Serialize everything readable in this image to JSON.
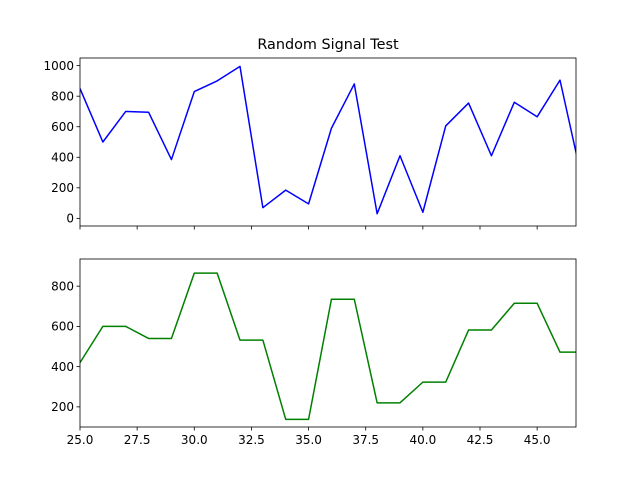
{
  "chart_data": [
    {
      "type": "line",
      "title": "Random Signal Test",
      "xlabel": "",
      "ylabel": "",
      "xlim": [
        25,
        46.7
      ],
      "ylim": [
        -50,
        1050
      ],
      "yticks": [
        0,
        200,
        400,
        600,
        800,
        1000
      ],
      "xticks": [
        25.0,
        27.5,
        30.0,
        32.5,
        35.0,
        37.5,
        40.0,
        42.5,
        45.0
      ],
      "x_tick_labels_shown": false,
      "grid": false,
      "series": [
        {
          "color": "#0000ff",
          "x": [
            25,
            26,
            27,
            28,
            29,
            30,
            31,
            32,
            33,
            34,
            35,
            36,
            37,
            38,
            39,
            40,
            41,
            42,
            43,
            44,
            45,
            46,
            47
          ],
          "y": [
            850,
            500,
            700,
            695,
            385,
            830,
            900,
            995,
            70,
            185,
            95,
            590,
            880,
            30,
            410,
            40,
            605,
            755,
            410,
            760,
            665,
            905,
            230
          ]
        }
      ]
    },
    {
      "type": "line",
      "title": "",
      "xlabel": "",
      "ylabel": "",
      "xlim": [
        25,
        46.7
      ],
      "ylim": [
        100,
        935
      ],
      "yticks": [
        200,
        400,
        600,
        800
      ],
      "xticks": [
        25.0,
        27.5,
        30.0,
        32.5,
        35.0,
        37.5,
        40.0,
        42.5,
        45.0
      ],
      "x_tick_labels_shown": true,
      "grid": false,
      "series": [
        {
          "color": "#008000",
          "x": [
            25,
            26,
            27,
            28,
            29,
            30,
            31,
            32,
            33,
            34,
            35,
            36,
            37,
            38,
            39,
            40,
            41,
            42,
            43,
            44,
            45,
            46,
            47
          ],
          "y": [
            420,
            600,
            600,
            540,
            540,
            865,
            865,
            532,
            532,
            138,
            138,
            735,
            735,
            220,
            220,
            323,
            323,
            582,
            582,
            715,
            715,
            472,
            472
          ]
        }
      ]
    }
  ]
}
